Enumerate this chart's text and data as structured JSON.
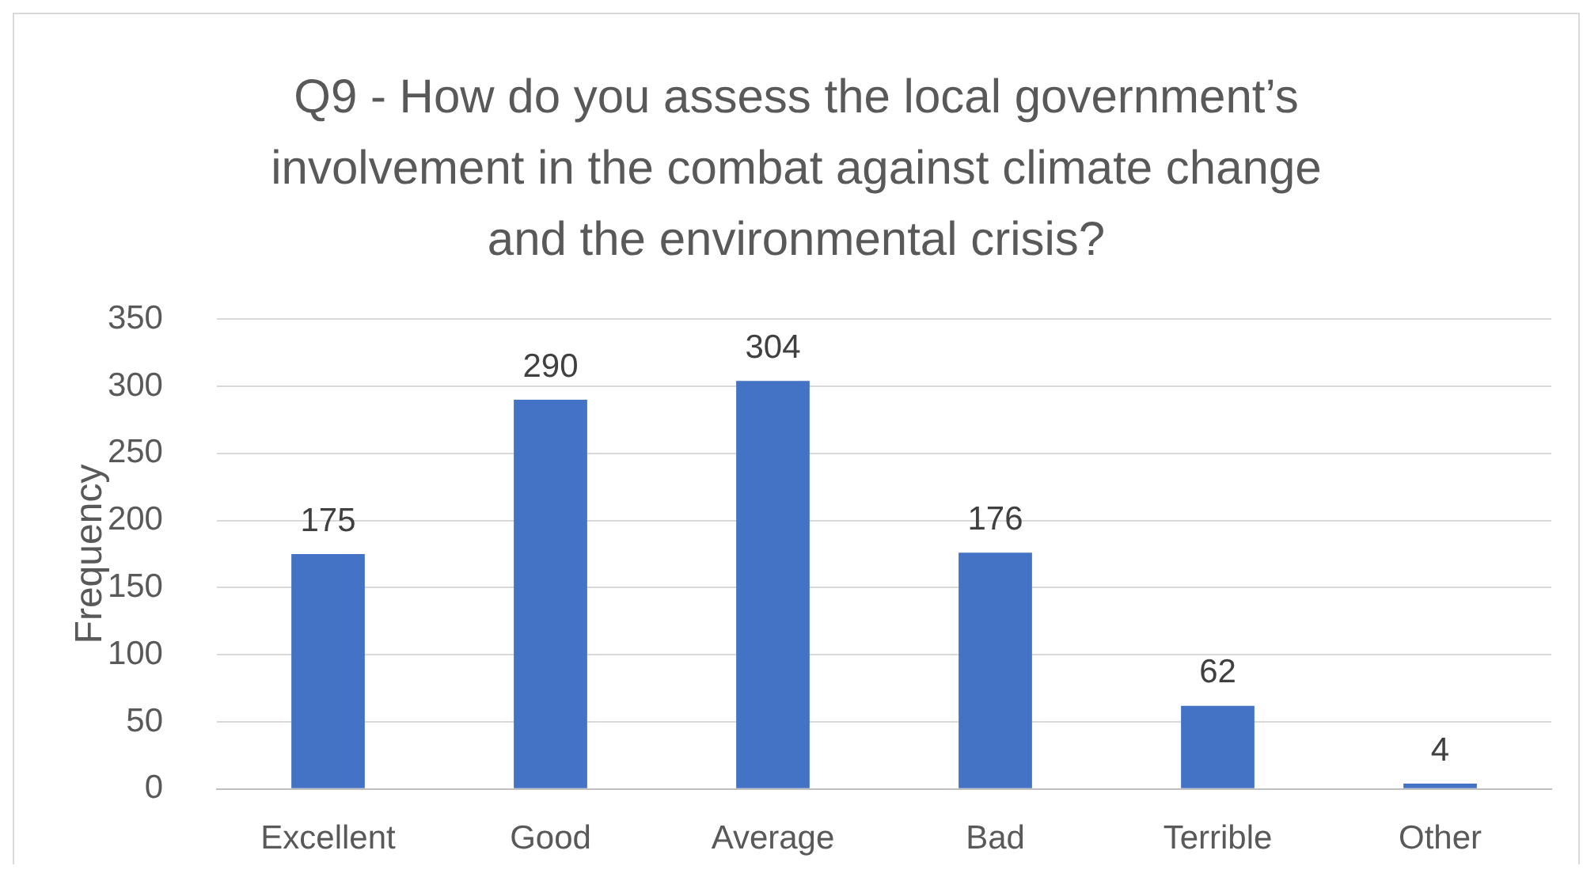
{
  "chart_data": {
    "type": "bar",
    "title": "Q9 - How do you assess the local government’s involvement in the combat against climate change and the environmental crisis?",
    "ylabel": "Frequency",
    "categories": [
      "Excellent",
      "Good",
      "Average",
      "Bad",
      "Terrible",
      "Other"
    ],
    "values": [
      175,
      290,
      304,
      176,
      62,
      4
    ],
    "color": "#4472c4",
    "ylim": [
      0,
      350
    ],
    "yticks": [
      0,
      50,
      100,
      150,
      200,
      250,
      300,
      350
    ],
    "grid": "y",
    "data_labels": true
  }
}
